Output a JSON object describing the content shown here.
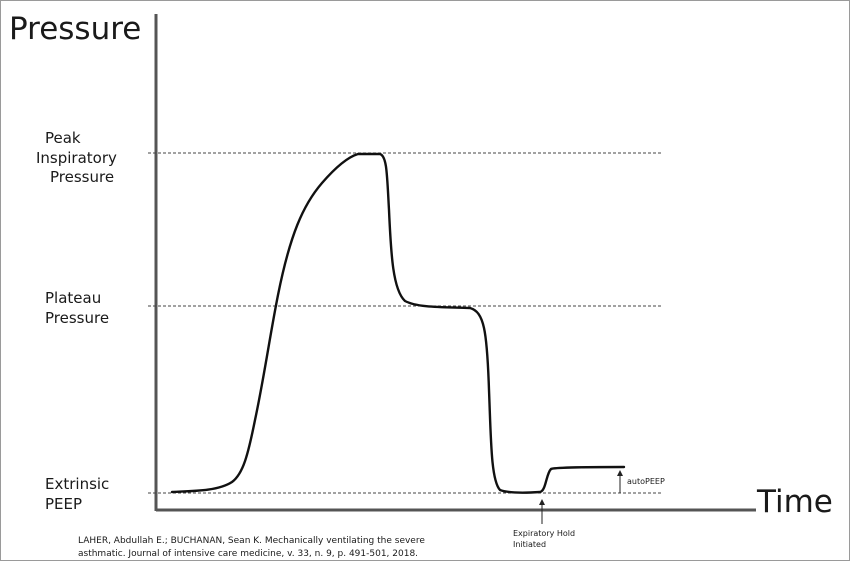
{
  "diagram": {
    "y_axis_title": "Pressure",
    "x_axis_title": "Time",
    "levels": {
      "peak": [
        "Peak",
        "Inspiratory",
        "Pressure"
      ],
      "plateau": [
        "Plateau",
        "Pressure"
      ],
      "peep": [
        "Extrinsic",
        "PEEP"
      ]
    },
    "annotations": {
      "autopeep": "autoPEEP",
      "hold": [
        "Expiratory Hold",
        "Initiated"
      ]
    },
    "citation": [
      "LAHER, Abdullah E.; BUCHANAN, Sean K. Mechanically ventilating the severe",
      "asthmatic. Journal of intensive care medicine, v. 33, n. 9, p. 491-501, 2018."
    ]
  }
}
